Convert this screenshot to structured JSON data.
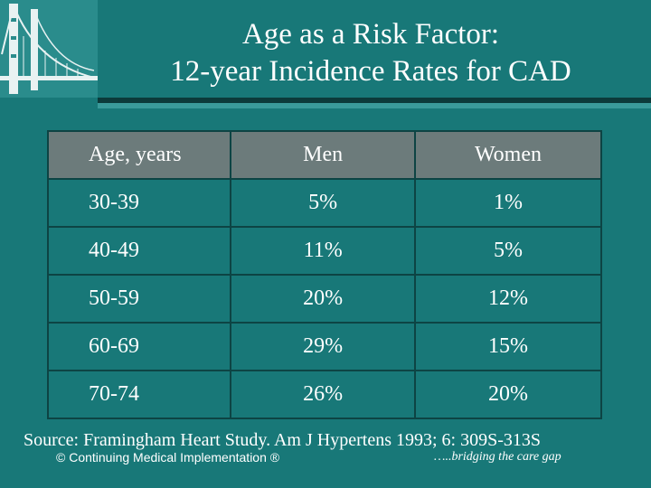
{
  "slide": {
    "title_line1": "Age as a Risk Factor:",
    "title_line2": "12-year Incidence Rates for CAD",
    "logo_icon": "golden-gate-bridge-icon",
    "colors": {
      "background": "#187878",
      "header_row": "#6c7b7b",
      "text": "#ffffff"
    }
  },
  "table": {
    "headers": [
      "Age, years",
      "Men",
      "Women"
    ],
    "rows": [
      [
        "30-39",
        "5%",
        "1%"
      ],
      [
        "40-49",
        "11%",
        "5%"
      ],
      [
        "50-59",
        "20%",
        "12%"
      ],
      [
        "60-69",
        "29%",
        "15%"
      ],
      [
        "70-74",
        "26%",
        "20%"
      ]
    ]
  },
  "source": "Source: Framingham Heart Study. Am J Hypertens 1993; 6: 309S-313S",
  "footer": {
    "left": "© Continuing Medical Implementation ®",
    "right": "…..bridging the care gap"
  }
}
